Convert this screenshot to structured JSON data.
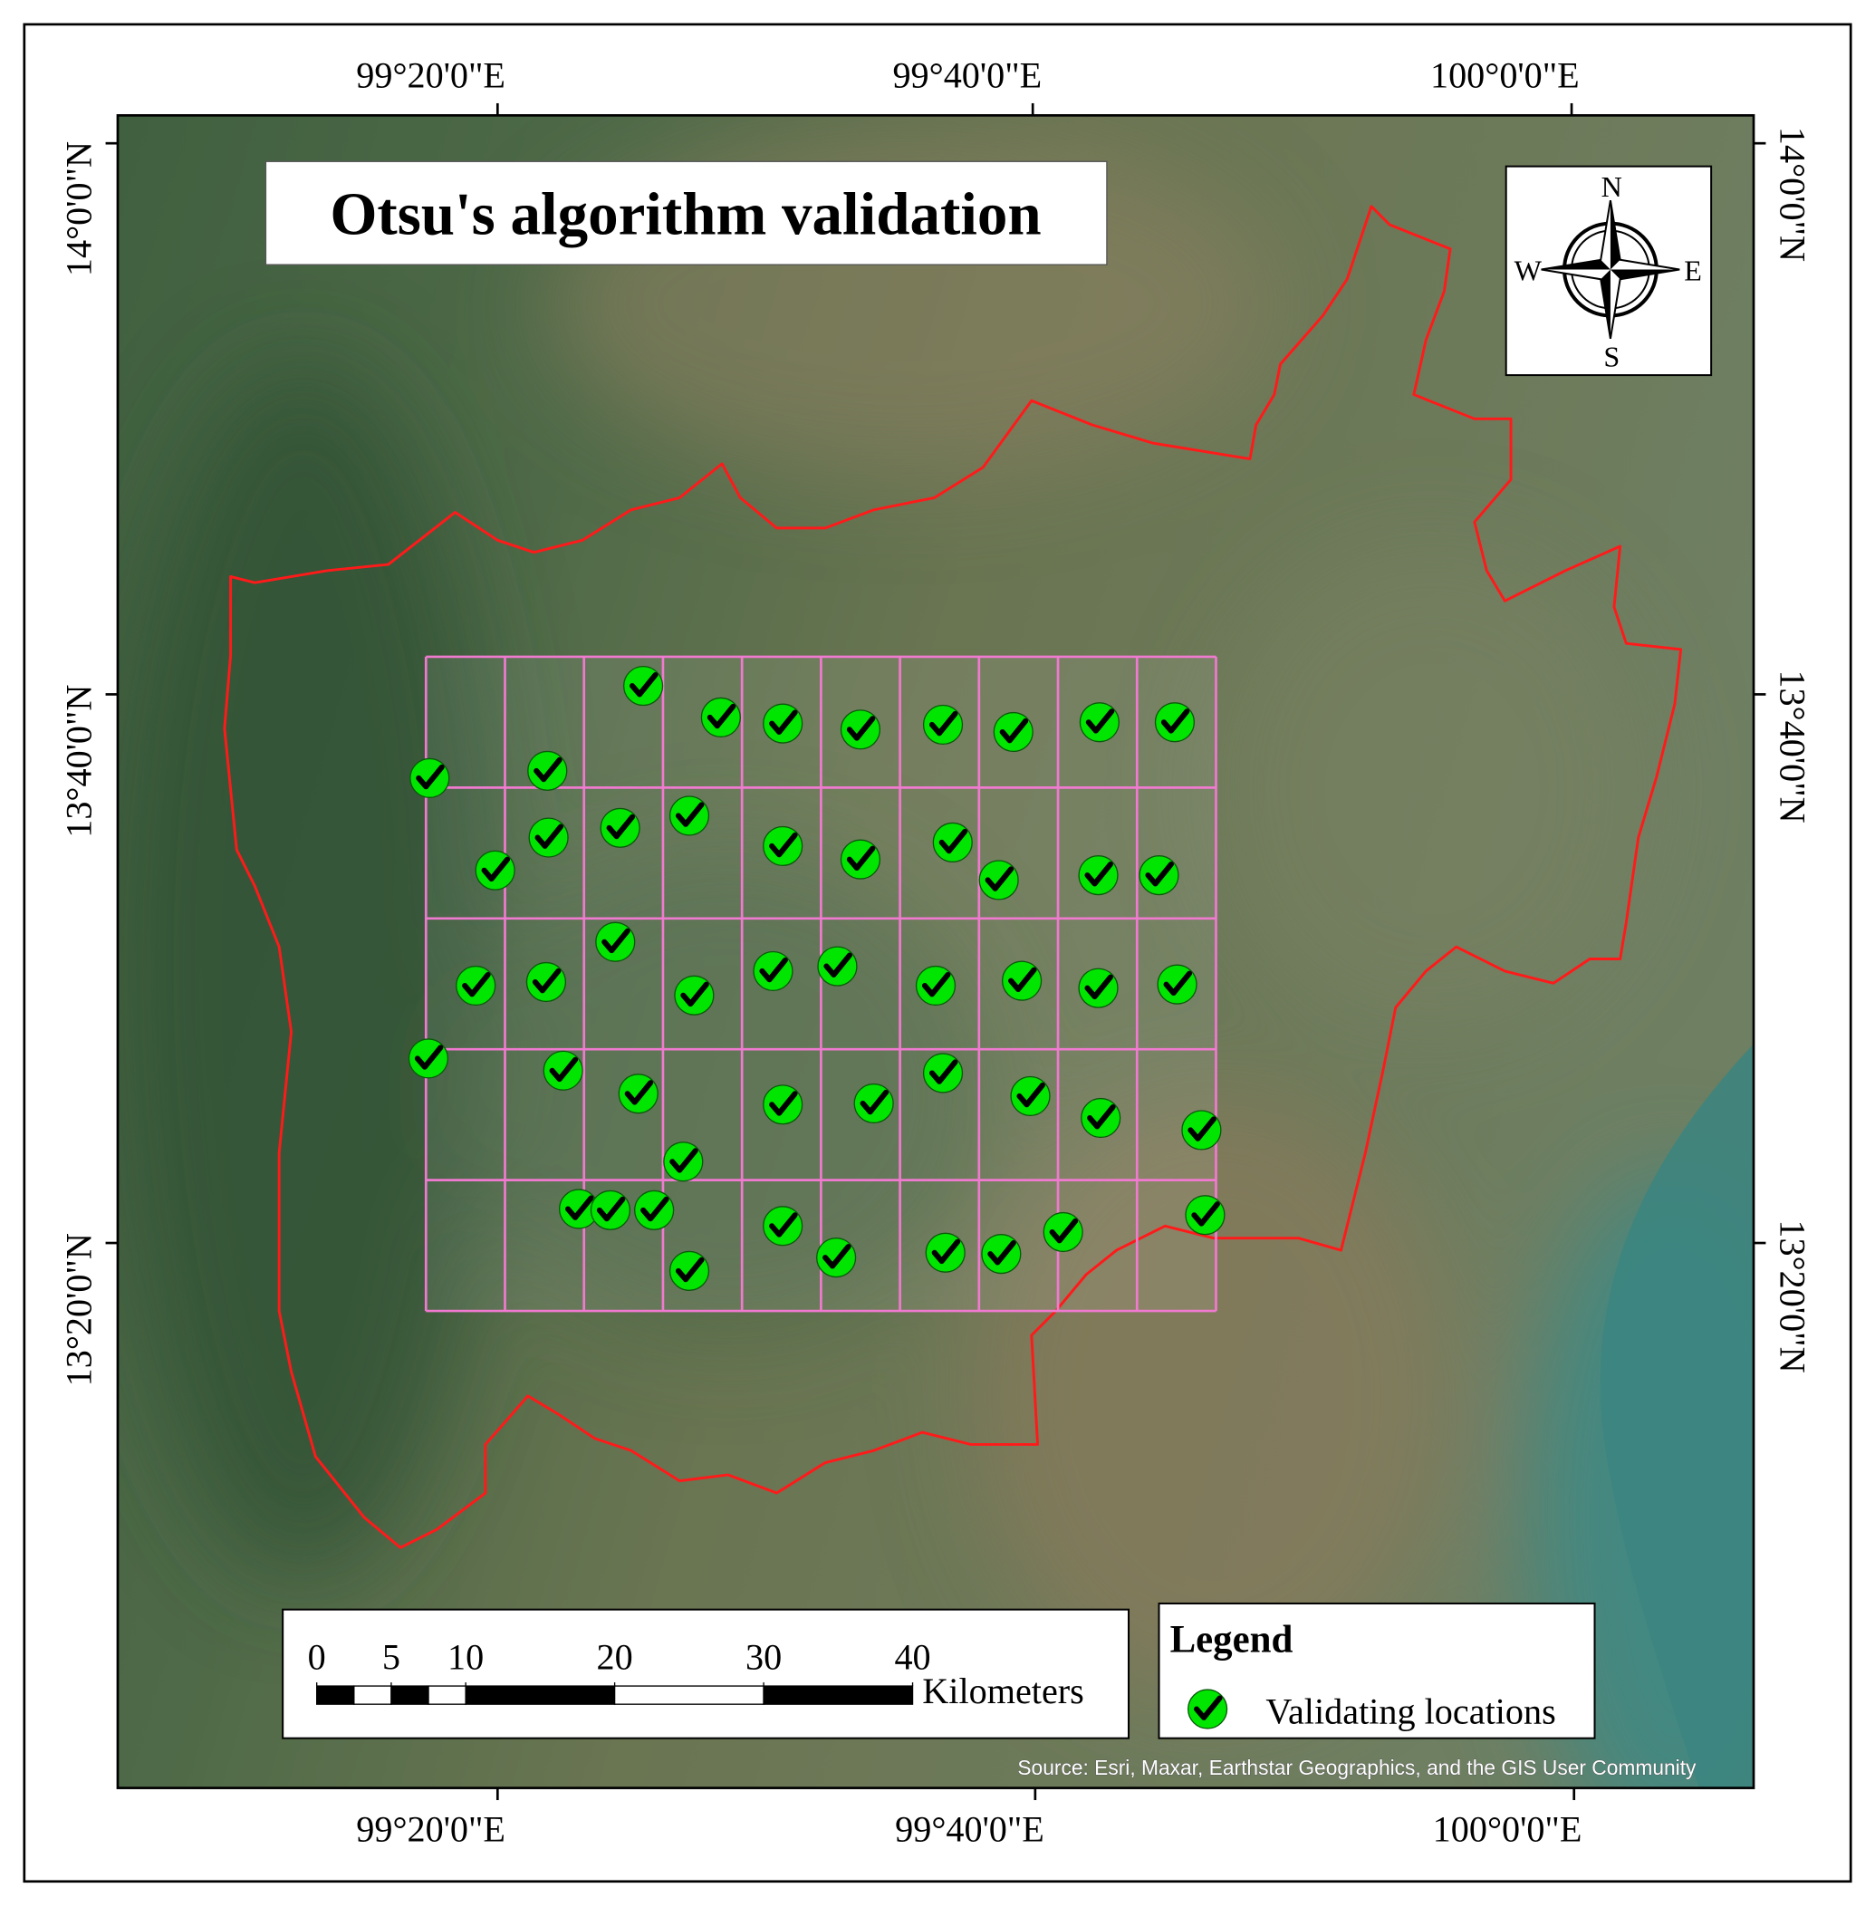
{
  "title": "Otsu's algorithm validation",
  "longitude_labels": {
    "top": [
      "99°20'0\"E",
      "99°40'0\"E",
      "100°0'0\"E"
    ],
    "bottom": [
      "99°20'0\"E",
      "99°40'0\"E",
      "100°0'0\"E"
    ]
  },
  "latitude_labels": {
    "left": [
      "14°0'0\"N",
      "13°40'0\"N",
      "13°20'0\"N"
    ],
    "right": [
      "14°0'0\"N",
      "13°40'0\"N",
      "13°20'0\"N"
    ]
  },
  "compass": {
    "north": "N",
    "east": "E",
    "south": "S",
    "west": "W"
  },
  "scale_bar": {
    "ticks": [
      0,
      5,
      10,
      20,
      30,
      40
    ],
    "unit": "Kilometers"
  },
  "legend": {
    "title": "Legend",
    "items": [
      "Validating locations"
    ]
  },
  "source": "Source: Esri, Maxar, Earthstar Geographics, and the GIS User Community"
}
